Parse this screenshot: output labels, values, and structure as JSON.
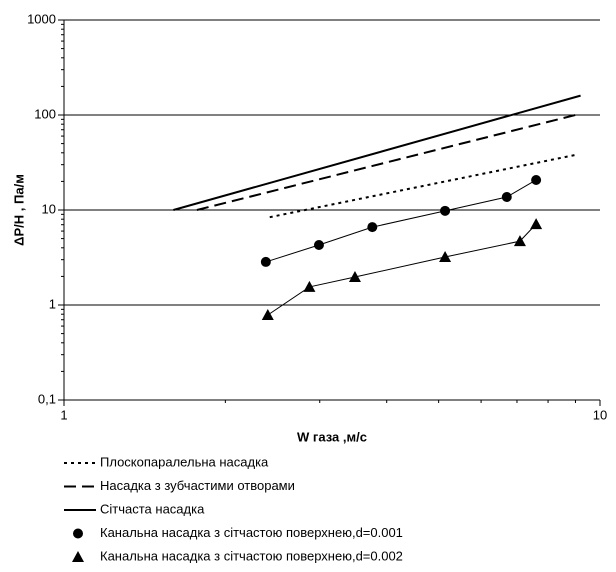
{
  "chart_data": {
    "type": "line",
    "log_x": true,
    "log_y": true,
    "grid": true,
    "xlabel": "W газа ,м/с",
    "ylabel": "ΔP/H , Па/м",
    "xlim": [
      1,
      10
    ],
    "xticks": [
      1,
      10
    ],
    "ylim": [
      0.1,
      1000
    ],
    "yticks": [
      {
        "value": 0.1,
        "label": "0,1"
      },
      1,
      10,
      100,
      1000
    ],
    "legend": "bottom",
    "series": [
      {
        "name": "Плоскопаралельна насадка",
        "color": "#000000",
        "style": "dotted",
        "x": [
          2.42,
          9.0
        ],
        "values": [
          8.4,
          38
        ]
      },
      {
        "name": "Насадка з зубчастими отворами",
        "color": "#000000",
        "style": "dashed",
        "x": [
          1.77,
          9.0
        ],
        "values": [
          10,
          100
        ]
      },
      {
        "name": "Сітчаста насадка",
        "color": "#000000",
        "style": "solid",
        "x": [
          1.6,
          9.2
        ],
        "values": [
          10,
          160
        ]
      },
      {
        "name": "Канальна насадка з сітчастою поверхнею,d=0.001",
        "color": "#000000",
        "style": "circle",
        "x": [
          2.38,
          2.99,
          3.76,
          5.14,
          6.7,
          7.6
        ],
        "values": [
          2.84,
          4.28,
          6.6,
          9.8,
          13.7,
          20.7
        ]
      },
      {
        "name": "Канальна насадка з сітчастою поверхнею,d=0.002",
        "color": "#000000",
        "style": "triangle",
        "x": [
          2.4,
          2.87,
          3.49,
          5.14,
          7.09,
          7.6
        ],
        "values": [
          0.785,
          1.55,
          1.97,
          3.2,
          4.7,
          7.1
        ]
      }
    ]
  }
}
